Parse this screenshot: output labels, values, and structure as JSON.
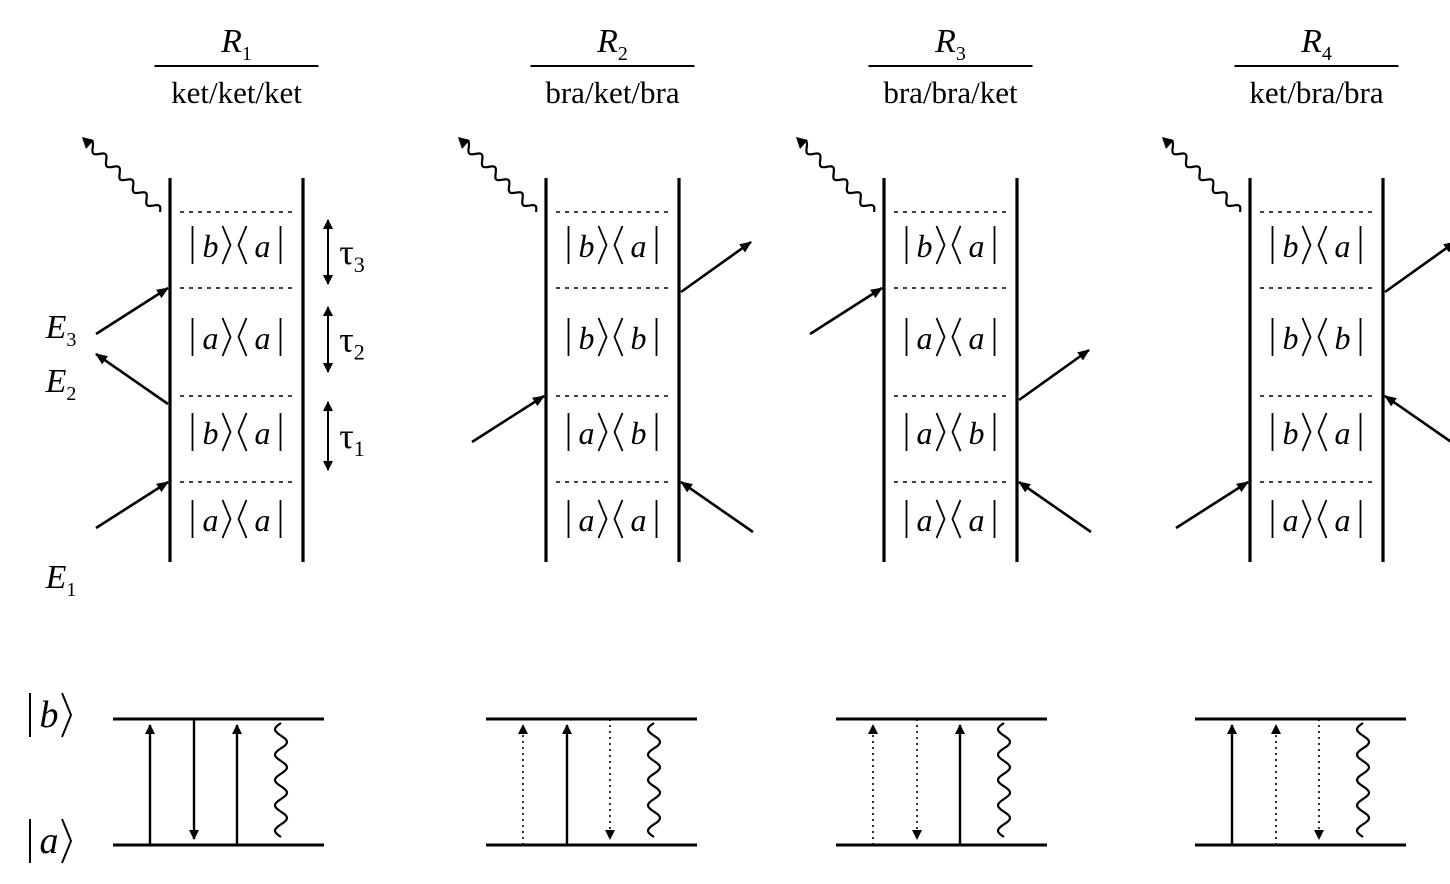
{
  "pathways": [
    {
      "id": "R1",
      "title_main": "R",
      "title_sub": "1",
      "subtitle": "ket/ket/ket",
      "rows": [
        {
          "ket": "b",
          "bra": "a"
        },
        {
          "ket": "a",
          "bra": "a"
        },
        {
          "ket": "b",
          "bra": "a"
        },
        {
          "ket": "a",
          "bra": "a"
        }
      ],
      "interactions": [
        {
          "field": "E1",
          "side": "ket",
          "dir": "in"
        },
        {
          "field": "E2",
          "side": "ket",
          "dir": "out"
        },
        {
          "field": "E3",
          "side": "ket",
          "dir": "in"
        }
      ],
      "levels": [
        {
          "style": "solid",
          "dir": "up"
        },
        {
          "style": "solid",
          "dir": "down"
        },
        {
          "style": "solid",
          "dir": "up"
        },
        {
          "style": "wavy"
        }
      ]
    },
    {
      "id": "R2",
      "title_main": "R",
      "title_sub": "2",
      "subtitle": "bra/ket/bra",
      "rows": [
        {
          "ket": "b",
          "bra": "a"
        },
        {
          "ket": "b",
          "bra": "b"
        },
        {
          "ket": "a",
          "bra": "b"
        },
        {
          "ket": "a",
          "bra": "a"
        }
      ],
      "interactions": [
        {
          "side": "bra",
          "dir": "in"
        },
        {
          "side": "ket",
          "dir": "in"
        },
        {
          "side": "bra",
          "dir": "out"
        }
      ],
      "levels": [
        {
          "style": "dotted",
          "dir": "up"
        },
        {
          "style": "solid",
          "dir": "up"
        },
        {
          "style": "dotted",
          "dir": "down"
        },
        {
          "style": "wavy"
        }
      ]
    },
    {
      "id": "R3",
      "title_main": "R",
      "title_sub": "3",
      "subtitle": "bra/bra/ket",
      "rows": [
        {
          "ket": "b",
          "bra": "a"
        },
        {
          "ket": "a",
          "bra": "a"
        },
        {
          "ket": "a",
          "bra": "b"
        },
        {
          "ket": "a",
          "bra": "a"
        }
      ],
      "interactions": [
        {
          "side": "bra",
          "dir": "in"
        },
        {
          "side": "bra",
          "dir": "out"
        },
        {
          "side": "ket",
          "dir": "in"
        }
      ],
      "levels": [
        {
          "style": "dotted",
          "dir": "up"
        },
        {
          "style": "dotted",
          "dir": "down"
        },
        {
          "style": "solid",
          "dir": "up"
        },
        {
          "style": "wavy"
        }
      ]
    },
    {
      "id": "R4",
      "title_main": "R",
      "title_sub": "4",
      "subtitle": "ket/bra/bra",
      "rows": [
        {
          "ket": "b",
          "bra": "a"
        },
        {
          "ket": "b",
          "bra": "b"
        },
        {
          "ket": "b",
          "bra": "a"
        },
        {
          "ket": "a",
          "bra": "a"
        }
      ],
      "interactions": [
        {
          "side": "ket",
          "dir": "in"
        },
        {
          "side": "bra",
          "dir": "in"
        },
        {
          "side": "bra",
          "dir": "out"
        }
      ],
      "levels": [
        {
          "style": "solid",
          "dir": "up"
        },
        {
          "style": "dotted",
          "dir": "up"
        },
        {
          "style": "dotted",
          "dir": "down"
        },
        {
          "style": "wavy"
        }
      ]
    }
  ],
  "fields": [
    {
      "name": "E",
      "sub": "3"
    },
    {
      "name": "E",
      "sub": "2"
    },
    {
      "name": "E",
      "sub": "1"
    }
  ],
  "delays": [
    {
      "name": "τ",
      "sub": "3"
    },
    {
      "name": "τ",
      "sub": "2"
    },
    {
      "name": "τ",
      "sub": "1"
    }
  ],
  "level_labels": {
    "upper": "b",
    "lower": "a"
  }
}
